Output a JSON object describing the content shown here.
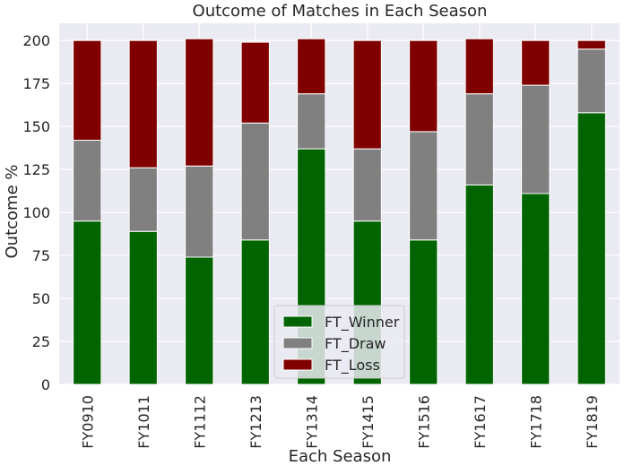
{
  "chart_data": {
    "type": "bar",
    "stacked": true,
    "title": "Outcome of Matches in Each Season",
    "xlabel": "Each Season",
    "ylabel": "Outcome %",
    "ylim": [
      0,
      210
    ],
    "yticks": [
      0,
      25,
      50,
      75,
      100,
      125,
      150,
      175,
      200
    ],
    "grid": true,
    "legend_position": "bottom-center",
    "categories": [
      "FY0910",
      "FY1011",
      "FY1112",
      "FY1213",
      "FY1314",
      "FY1415",
      "FY1516",
      "FY1617",
      "FY1718",
      "FY1819"
    ],
    "series": [
      {
        "name": "FT_Winner",
        "color": "#006400",
        "values": [
          95,
          89,
          74,
          84,
          137,
          95,
          84,
          116,
          111,
          158
        ]
      },
      {
        "name": "FT_Draw",
        "color": "#808080",
        "values": [
          47,
          37,
          53,
          68,
          32,
          42,
          63,
          53,
          63,
          37
        ]
      },
      {
        "name": "FT_Loss",
        "color": "#800000",
        "values": [
          58,
          74,
          74,
          47,
          32,
          63,
          53,
          32,
          26,
          5
        ]
      }
    ]
  }
}
